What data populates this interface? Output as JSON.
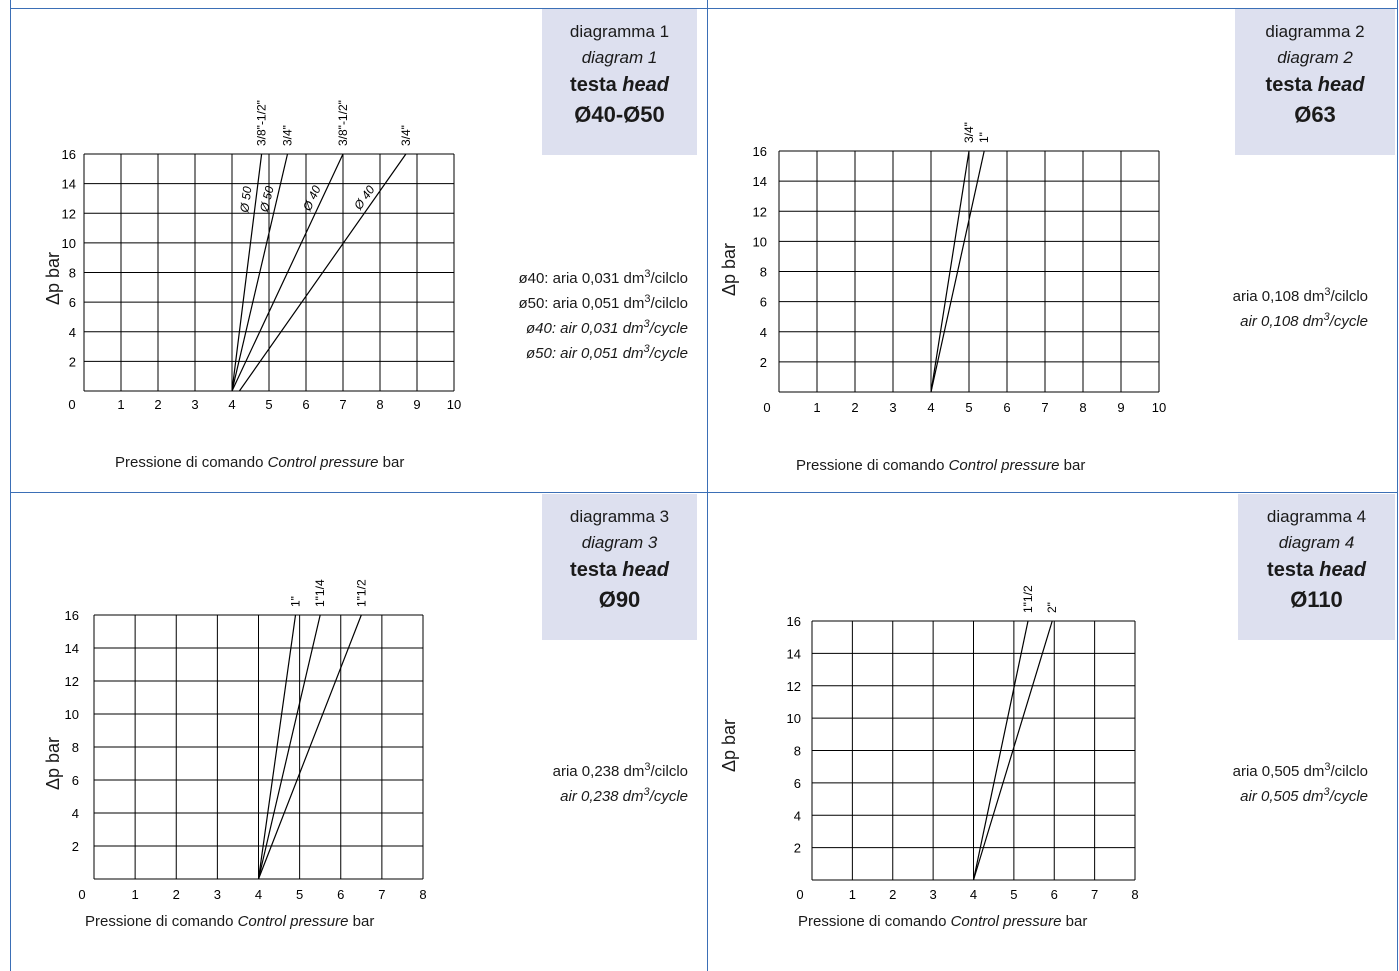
{
  "panels": [
    {
      "title": {
        "l1": "diagramma 1",
        "l2": "diagram 1",
        "l3a": "testa ",
        "l3b": "head",
        "l4": "Ø40-Ø50"
      },
      "notes": [
        {
          "pre": "ø40: aria 0,031 dm",
          "sup": "3",
          "post": "/cilclo",
          "italic": false
        },
        {
          "pre": "ø50: aria 0,051 dm",
          "sup": "3",
          "post": "/cilclo",
          "italic": false
        },
        {
          "pre": "ø40: air 0,031 dm",
          "sup": "3",
          "post": "/cycle",
          "italic": true
        },
        {
          "pre": "ø50: air 0,051 dm",
          "sup": "3",
          "post": "/cycle",
          "italic": true
        }
      ],
      "xlabel": {
        "pre": "Pressione di comando ",
        "it": "Control pressure",
        "post": " bar"
      },
      "ylabel": "Δp bar"
    },
    {
      "title": {
        "l1": "diagramma 2",
        "l2": "diagram 2",
        "l3a": "testa ",
        "l3b": "head",
        "l4": "Ø63"
      },
      "notes": [
        {
          "pre": "aria 0,108 dm",
          "sup": "3",
          "post": "/cilclo",
          "italic": false
        },
        {
          "pre": "air 0,108 dm",
          "sup": "3",
          "post": "/cycle",
          "italic": true
        }
      ],
      "xlabel": {
        "pre": "Pressione di comando ",
        "it": "Control pressure",
        "post": " bar"
      },
      "ylabel": "Δp bar"
    },
    {
      "title": {
        "l1": "diagramma 3",
        "l2": "diagram 3",
        "l3a": "testa ",
        "l3b": "head",
        "l4": "Ø90"
      },
      "notes": [
        {
          "pre": "aria 0,238 dm",
          "sup": "3",
          "post": "/cilclo",
          "italic": false
        },
        {
          "pre": "air 0,238 dm",
          "sup": "3",
          "post": "/cycle",
          "italic": true
        }
      ],
      "xlabel": {
        "pre": "Pressione di comando ",
        "it": "Control pressure",
        "post": " bar"
      },
      "ylabel": "Δp bar"
    },
    {
      "title": {
        "l1": "diagramma 4",
        "l2": "diagram 4",
        "l3a": "testa ",
        "l3b": "head",
        "l4": "Ø110"
      },
      "notes": [
        {
          "pre": "aria 0,505 dm",
          "sup": "3",
          "post": "/cilclo",
          "italic": false
        },
        {
          "pre": "air 0,505 dm",
          "sup": "3",
          "post": "/cycle",
          "italic": true
        }
      ],
      "xlabel": {
        "pre": "Pressione di comando ",
        "it": "Control pressure",
        "post": " bar"
      },
      "ylabel": "Δp bar"
    }
  ],
  "chart_data": [
    {
      "type": "line",
      "title": "diagramma 1",
      "xlabel": "Pressione di comando Control pressure bar",
      "ylabel": "Δp bar",
      "xlim": [
        0,
        10
      ],
      "ylim": [
        0,
        16
      ],
      "xticks": [
        "0",
        "1",
        "2",
        "3",
        "4",
        "5",
        "6",
        "7",
        "8",
        "9",
        "10"
      ],
      "yticks": [
        "2",
        "4",
        "6",
        "8",
        "10",
        "12",
        "14",
        "16"
      ],
      "grid": true,
      "series": [
        {
          "name": "3/8\"-1/2\"",
          "group": "Ø 50",
          "x": [
            4.0,
            4.8
          ],
          "y": [
            0,
            16
          ]
        },
        {
          "name": "3/4\"",
          "group": "Ø 50",
          "x": [
            4.0,
            5.5
          ],
          "y": [
            0,
            16
          ]
        },
        {
          "name": "3/8\"-1/2\"",
          "group": "Ø 40",
          "x": [
            4.0,
            7.0
          ],
          "y": [
            0,
            16
          ]
        },
        {
          "name": "3/4\"",
          "group": "Ø 40",
          "x": [
            4.2,
            8.7
          ],
          "y": [
            0,
            16
          ]
        }
      ],
      "annotations": [
        "Ø 50",
        "Ø 50",
        "Ø 40",
        "Ø 40"
      ]
    },
    {
      "type": "line",
      "title": "diagramma 2",
      "xlabel": "Pressione di comando Control pressure bar",
      "ylabel": "Δp bar",
      "xlim": [
        0,
        10
      ],
      "ylim": [
        0,
        16
      ],
      "xticks": [
        "0",
        "1",
        "2",
        "3",
        "4",
        "5",
        "6",
        "7",
        "8",
        "9",
        "10"
      ],
      "yticks": [
        "2",
        "4",
        "6",
        "8",
        "10",
        "12",
        "14",
        "16"
      ],
      "grid": true,
      "series": [
        {
          "name": "3/4\"",
          "x": [
            4.0,
            5.0
          ],
          "y": [
            0,
            16
          ]
        },
        {
          "name": "1\"",
          "x": [
            4.0,
            5.4
          ],
          "y": [
            0,
            16
          ]
        }
      ]
    },
    {
      "type": "line",
      "title": "diagramma 3",
      "xlabel": "Pressione di comando Control pressure bar",
      "ylabel": "Δp bar",
      "xlim": [
        0,
        8
      ],
      "ylim": [
        0,
        16
      ],
      "xticks": [
        "0",
        "1",
        "2",
        "3",
        "4",
        "5",
        "6",
        "7",
        "8"
      ],
      "yticks": [
        "2",
        "4",
        "6",
        "8",
        "10",
        "12",
        "14",
        "16"
      ],
      "grid": true,
      "series": [
        {
          "name": "1\"",
          "x": [
            4.0,
            4.9
          ],
          "y": [
            0,
            16
          ]
        },
        {
          "name": "1\"1/4",
          "x": [
            4.0,
            5.5
          ],
          "y": [
            0,
            16
          ]
        },
        {
          "name": "1\"1/2",
          "x": [
            4.0,
            6.5
          ],
          "y": [
            0,
            16
          ]
        }
      ]
    },
    {
      "type": "line",
      "title": "diagramma 4",
      "xlabel": "Pressione di comando Control pressure bar",
      "ylabel": "Δp bar",
      "xlim": [
        0,
        8
      ],
      "ylim": [
        0,
        16
      ],
      "xticks": [
        "0",
        "1",
        "2",
        "3",
        "4",
        "5",
        "6",
        "7",
        "8"
      ],
      "yticks": [
        "2",
        "4",
        "6",
        "8",
        "10",
        "12",
        "14",
        "16"
      ],
      "grid": true,
      "series": [
        {
          "name": "1\"1/2",
          "x": [
            4.0,
            5.35
          ],
          "y": [
            0,
            16
          ]
        },
        {
          "name": "2\"",
          "x": [
            4.0,
            5.95
          ],
          "y": [
            0,
            16
          ]
        }
      ]
    }
  ]
}
